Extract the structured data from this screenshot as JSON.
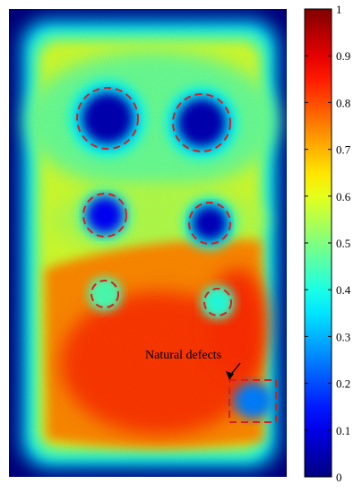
{
  "chart_data": {
    "type": "heatmap",
    "title": "",
    "xlabel": "",
    "ylabel": "",
    "colormap": "jet",
    "colorbar": {
      "range": [
        0,
        1
      ],
      "ticks": [
        0,
        0.1,
        0.2,
        0.3,
        0.4,
        0.5,
        0.6,
        0.7,
        0.8,
        0.9,
        1
      ],
      "tick_labels": [
        "0",
        "0.1",
        "0.2",
        "0.3",
        "0.4",
        "0.5",
        "0.6",
        "0.7",
        "0.8",
        "0.9",
        "1"
      ],
      "placement": "right"
    },
    "background_level": 0.0,
    "plate_base_level": 0.58,
    "plate_lower_level": 0.77,
    "circled_defects": [
      {
        "id": "defect-1",
        "row": 1,
        "column": "left",
        "size": "large",
        "value": 0.05
      },
      {
        "id": "defect-2",
        "row": 1,
        "column": "right",
        "size": "large",
        "value": 0.05
      },
      {
        "id": "defect-3",
        "row": 2,
        "column": "left",
        "size": "medium",
        "value": 0.12
      },
      {
        "id": "defect-4",
        "row": 2,
        "column": "right",
        "size": "medium",
        "value": 0.06
      },
      {
        "id": "defect-5",
        "row": 3,
        "column": "left",
        "size": "small",
        "value": 0.45
      },
      {
        "id": "defect-6",
        "row": 3,
        "column": "right",
        "size": "small",
        "value": 0.4
      }
    ],
    "annotation": {
      "text": "Natural defects",
      "marker": "dashed-rectangle",
      "value": 0.25
    },
    "marker_color": "#d42020"
  }
}
